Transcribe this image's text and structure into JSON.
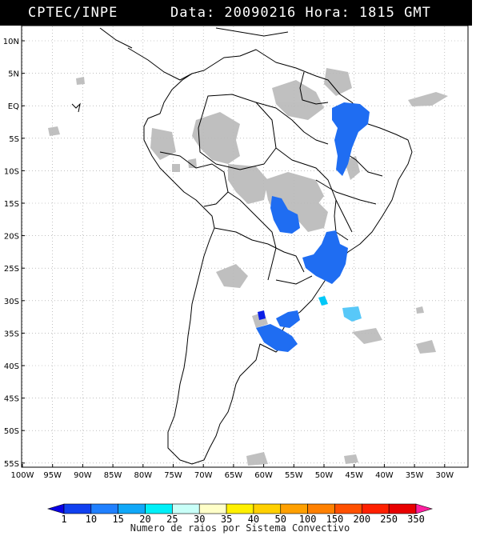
{
  "header": {
    "source_label": "CPTEC/INPE",
    "datetime_label": "Data: 20090216 Hora: 1815 GMT"
  },
  "map": {
    "region": "South America",
    "lat_labels": [
      "10N",
      "5N",
      "EQ",
      "5S",
      "10S",
      "15S",
      "20S",
      "25S",
      "30S",
      "35S",
      "40S",
      "45S",
      "50S",
      "55S"
    ],
    "lon_labels": [
      "100W",
      "95W",
      "90W",
      "85W",
      "80W",
      "75W",
      "70W",
      "65W",
      "60W",
      "55W",
      "50W",
      "45W",
      "40W",
      "35W",
      "30W"
    ],
    "layers": [
      "country-borders",
      "state-borders",
      "cloud-cover-gray",
      "convective-systems"
    ],
    "colors": {
      "land": "#ffffff",
      "ocean": "#ffffff",
      "borders": "#000000",
      "cloud": "#b8b8b8",
      "grid": "#9a9a9a"
    }
  },
  "legend": {
    "title": "Numero de raios por Sistema Convectivo",
    "ticks": [
      "1",
      "10",
      "15",
      "20",
      "25",
      "30",
      "35",
      "40",
      "50",
      "100",
      "150",
      "200",
      "250",
      "350"
    ],
    "colors": [
      "#0a00e6",
      "#1040f0",
      "#2080ff",
      "#10a8f8",
      "#00f0f8",
      "#c8fff8",
      "#ffffc8",
      "#fff000",
      "#ffd000",
      "#ffa000",
      "#ff8000",
      "#ff5000",
      "#ff2000",
      "#e80000",
      "#ff20a0"
    ]
  }
}
